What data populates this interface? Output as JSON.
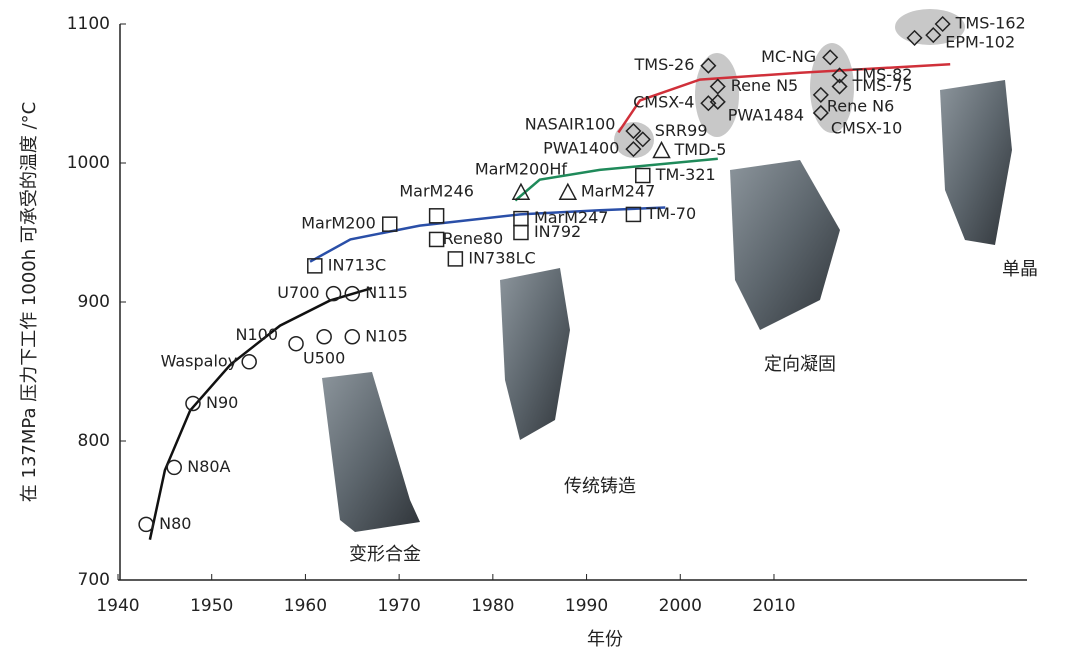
{
  "chart_data": {
    "type": "scatter",
    "x_label": "年份",
    "y_label": "在 137MPa 压力下工作 1000h 可承受的温度 /°C",
    "xlim": [
      1940,
      2037
    ],
    "ylim": [
      700,
      1100
    ],
    "xticks": [
      1940,
      1950,
      1960,
      1970,
      1980,
      1990,
      2000,
      2010
    ],
    "yticks": [
      700,
      800,
      900,
      1000,
      1100
    ],
    "series": [
      {
        "name": "变形合金",
        "marker": "circle",
        "color": "#222222",
        "labels": [
          "N80",
          "N80A",
          "N90",
          "Waspaloy",
          "N100",
          "U500",
          "N105",
          "U700",
          "N115"
        ],
        "x": [
          1943,
          1946,
          1948,
          1954,
          1959,
          1962,
          1965,
          1963,
          1965
        ],
        "values": [
          740,
          781,
          827,
          857,
          870,
          875,
          875,
          906,
          906
        ]
      },
      {
        "name": "传统铸造",
        "marker": "square",
        "color": "#222222",
        "labels": [
          "IN713C",
          "MarM200",
          "MarM246",
          "Rene80",
          "IN738LC",
          "MarM247",
          "IN792",
          "TM-321",
          "TM-70"
        ],
        "x": [
          1961,
          1969,
          1974,
          1974,
          1976,
          1983,
          1983,
          1996,
          1995
        ],
        "values": [
          926,
          956,
          962,
          945,
          931,
          960,
          950,
          991,
          963
        ]
      },
      {
        "name": "定向凝固",
        "marker": "triangle",
        "color": "#222222",
        "labels": [
          "MarM200Hf",
          "MarM247",
          "TMD-5"
        ],
        "x": [
          1983,
          1988,
          1998
        ],
        "values": [
          979,
          979,
          1009
        ]
      },
      {
        "name": "单晶",
        "marker": "diamond",
        "color": "#222222",
        "labels": [
          "NASAIR100",
          "SRR99",
          "PWA1400",
          "TMS-26",
          "Rene N5",
          "CMSX-4",
          "PWA1484",
          "MC-NG",
          "TMS-82",
          "TMS-75",
          "Rene N6",
          "CMSX-10",
          "TMS-162",
          "EPM-102",
          null
        ],
        "x": [
          1995,
          1996,
          1995,
          2003,
          2004,
          2003,
          2004,
          2016,
          2017,
          2017,
          2015,
          2015,
          2028,
          2027,
          2025
        ],
        "values": [
          1023,
          1017,
          1010,
          1070,
          1055,
          1043,
          1044,
          1076,
          1063,
          1055,
          1049,
          1036,
          1100,
          1092,
          1090
        ]
      }
    ],
    "trends": [
      {
        "color": "#111111",
        "x": [
          1943.4,
          1945,
          1947.7,
          1952,
          1957.3,
          1962.6,
          1967.1
        ],
        "values": [
          729,
          779,
          822,
          855,
          883,
          901,
          910
        ]
      },
      {
        "color": "#2a4fa8",
        "x": [
          1960.5,
          1964.8,
          1972.2,
          1982.9,
          1991.4,
          1998.4
        ],
        "values": [
          929,
          945,
          955,
          963,
          966,
          968
        ]
      },
      {
        "color": "#1f8a5a",
        "x": [
          1982.4,
          1985,
          1991.4,
          2004
        ],
        "values": [
          973,
          988,
          995,
          1003
        ]
      },
      {
        "color": "#d0303a",
        "x": [
          1993.4,
          1995.7,
          2002.1,
          2012.8,
          2028.8
        ],
        "values": [
          1022,
          1045,
          1060,
          1065,
          1071
        ]
      }
    ]
  }
}
